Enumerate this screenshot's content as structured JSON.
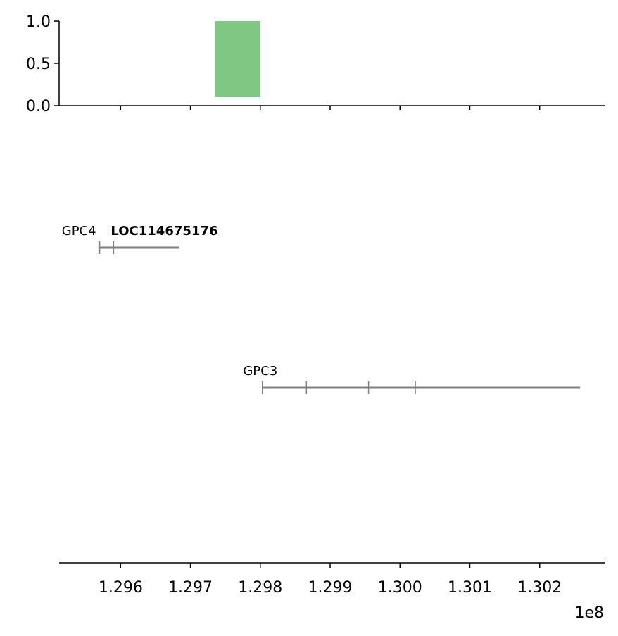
{
  "chart_data": [
    {
      "type": "bar",
      "panel": "top",
      "xlim": [
        129512000,
        130293000
      ],
      "ylim": [
        0,
        1
      ],
      "yticks": [
        0.0,
        0.5,
        1.0
      ],
      "ytick_labels": [
        "0.0",
        "0.5",
        "1.0"
      ],
      "bars": [
        {
          "x0": 129735000,
          "x1": 129800000,
          "y0": 0.1,
          "y1": 1.0,
          "color": "#7fc782"
        }
      ]
    },
    {
      "type": "gene-track",
      "panel": "bottom",
      "xlim": [
        129512000,
        130293000
      ],
      "xticks": [
        129600000,
        129700000,
        129800000,
        129900000,
        130000000,
        130100000,
        130200000
      ],
      "xtick_labels": [
        "1.296",
        "1.297",
        "1.298",
        "1.299",
        "1.300",
        "1.301",
        "1.302"
      ],
      "offset_label": "1e8",
      "line_color": "#808080",
      "genes": [
        {
          "name": "GPC4",
          "label": "GPC4",
          "start": 129569000,
          "end": 129684000,
          "row": 0,
          "exons": [
            129569000,
            129570000,
            129590000
          ],
          "label_color": "#000000",
          "bold": false,
          "label_anchor_x": 129565000
        },
        {
          "name": "LOC114675176",
          "label": "LOC114675176",
          "start": 129586000,
          "end": 129588000,
          "row": 0,
          "exons": [],
          "label_color": "#ff0000",
          "bold": true,
          "label_anchor_x": 129586000
        },
        {
          "name": "GPC3",
          "label": "GPC3",
          "start": 129803000,
          "end": 130258000,
          "row": 1,
          "exons": [
            129803000,
            129866000,
            129955000,
            130022000
          ],
          "label_color": "#000000",
          "bold": false,
          "label_anchor_x": 129800000
        }
      ]
    }
  ]
}
